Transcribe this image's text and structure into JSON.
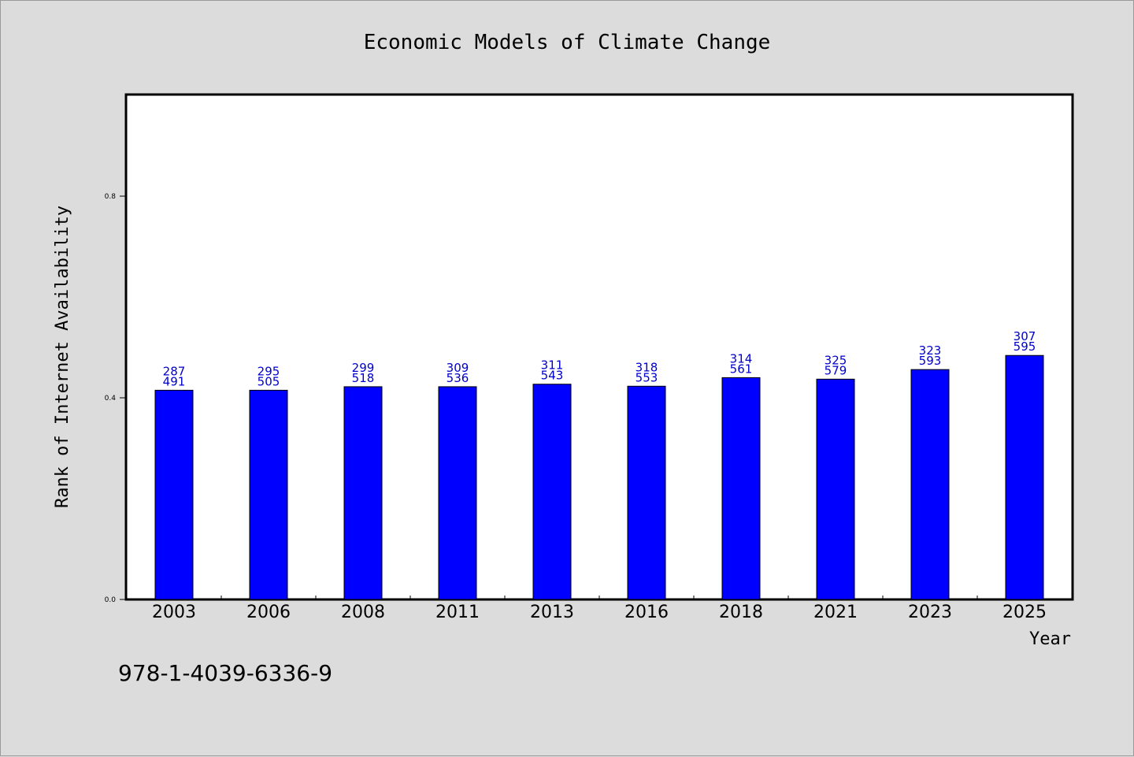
{
  "chart_data": {
    "type": "bar",
    "title": "Economic Models of Climate Change",
    "xlabel": "Year",
    "ylabel": "Rank of Internet Availability",
    "ylim": [
      0,
      1.0
    ],
    "yticks": [
      {
        "value": 0.0,
        "label": "0.0"
      },
      {
        "value": 0.4,
        "label": "0.4"
      },
      {
        "value": 0.8,
        "label": "0.8"
      }
    ],
    "categories": [
      "2003",
      "2006",
      "2008",
      "2011",
      "2013",
      "2016",
      "2018",
      "2021",
      "2023",
      "2025"
    ],
    "values": [
      0.415,
      0.415,
      0.422,
      0.422,
      0.427,
      0.423,
      0.44,
      0.437,
      0.456,
      0.484
    ],
    "data_labels": [
      [
        "287",
        "491"
      ],
      [
        "295",
        "505"
      ],
      [
        "299",
        "518"
      ],
      [
        "309",
        "536"
      ],
      [
        "311",
        "543"
      ],
      [
        "318",
        "553"
      ],
      [
        "314",
        "561"
      ],
      [
        "325",
        "579"
      ],
      [
        "323",
        "593"
      ],
      [
        "307",
        "595"
      ]
    ],
    "grid": false,
    "colors": {
      "bar": "#0000ff",
      "bar_edge": "#000000",
      "data_label": "#0000cc",
      "plot_background": "#ffffff",
      "page_background": "#dcdcdc"
    }
  },
  "footer": {
    "isbn": "978-1-4039-6336-9"
  }
}
